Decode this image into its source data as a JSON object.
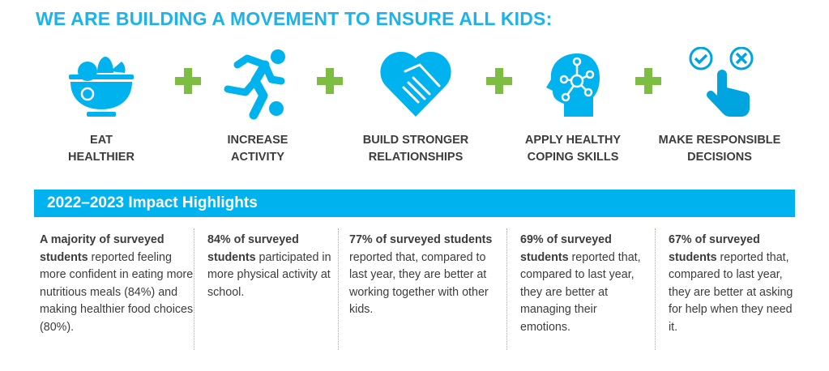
{
  "header": {
    "title": "WE ARE BUILDING A MOVEMENT TO ENSURE ALL KIDS:"
  },
  "goals": [
    {
      "icon": "fruit-bowl-icon",
      "line1": "EAT",
      "line2": "HEALTHIER"
    },
    {
      "icon": "soccer-player-icon",
      "line1": "INCREASE",
      "line2": "ACTIVITY"
    },
    {
      "icon": "handshake-heart-icon",
      "line1": "BUILD STRONGER",
      "line2": "RELATIONSHIPS"
    },
    {
      "icon": "head-network-icon",
      "line1": "APPLY HEALTHY",
      "line2": "COPING SKILLS"
    },
    {
      "icon": "hand-choice-icon",
      "line1": "MAKE RESPONSIBLE",
      "line2": "DECISIONS"
    }
  ],
  "highlights": {
    "title": "2022–2023 Impact Highlights",
    "items": [
      {
        "bold": "A majority of surveyed students",
        "text": " reported feeling more confident in eating more nutritious meals (84%) and making healthier food choices (80%)."
      },
      {
        "bold": "84% of surveyed students",
        "text": " participated in more physical activity at school."
      },
      {
        "bold": "77% of surveyed students",
        "text": " reported that, compared to last year, they are better at working together with other kids."
      },
      {
        "bold": "69% of surveyed students",
        "text": " reported that, compared to last year, they are better at managing their emotions."
      },
      {
        "bold": "67% of surveyed students",
        "text": " reported that, compared to last year, they are better at asking for help when they need it."
      }
    ]
  },
  "colors": {
    "accent": "#00b2ee",
    "plus": "#7cbd42",
    "text": "#3c3c3c"
  }
}
